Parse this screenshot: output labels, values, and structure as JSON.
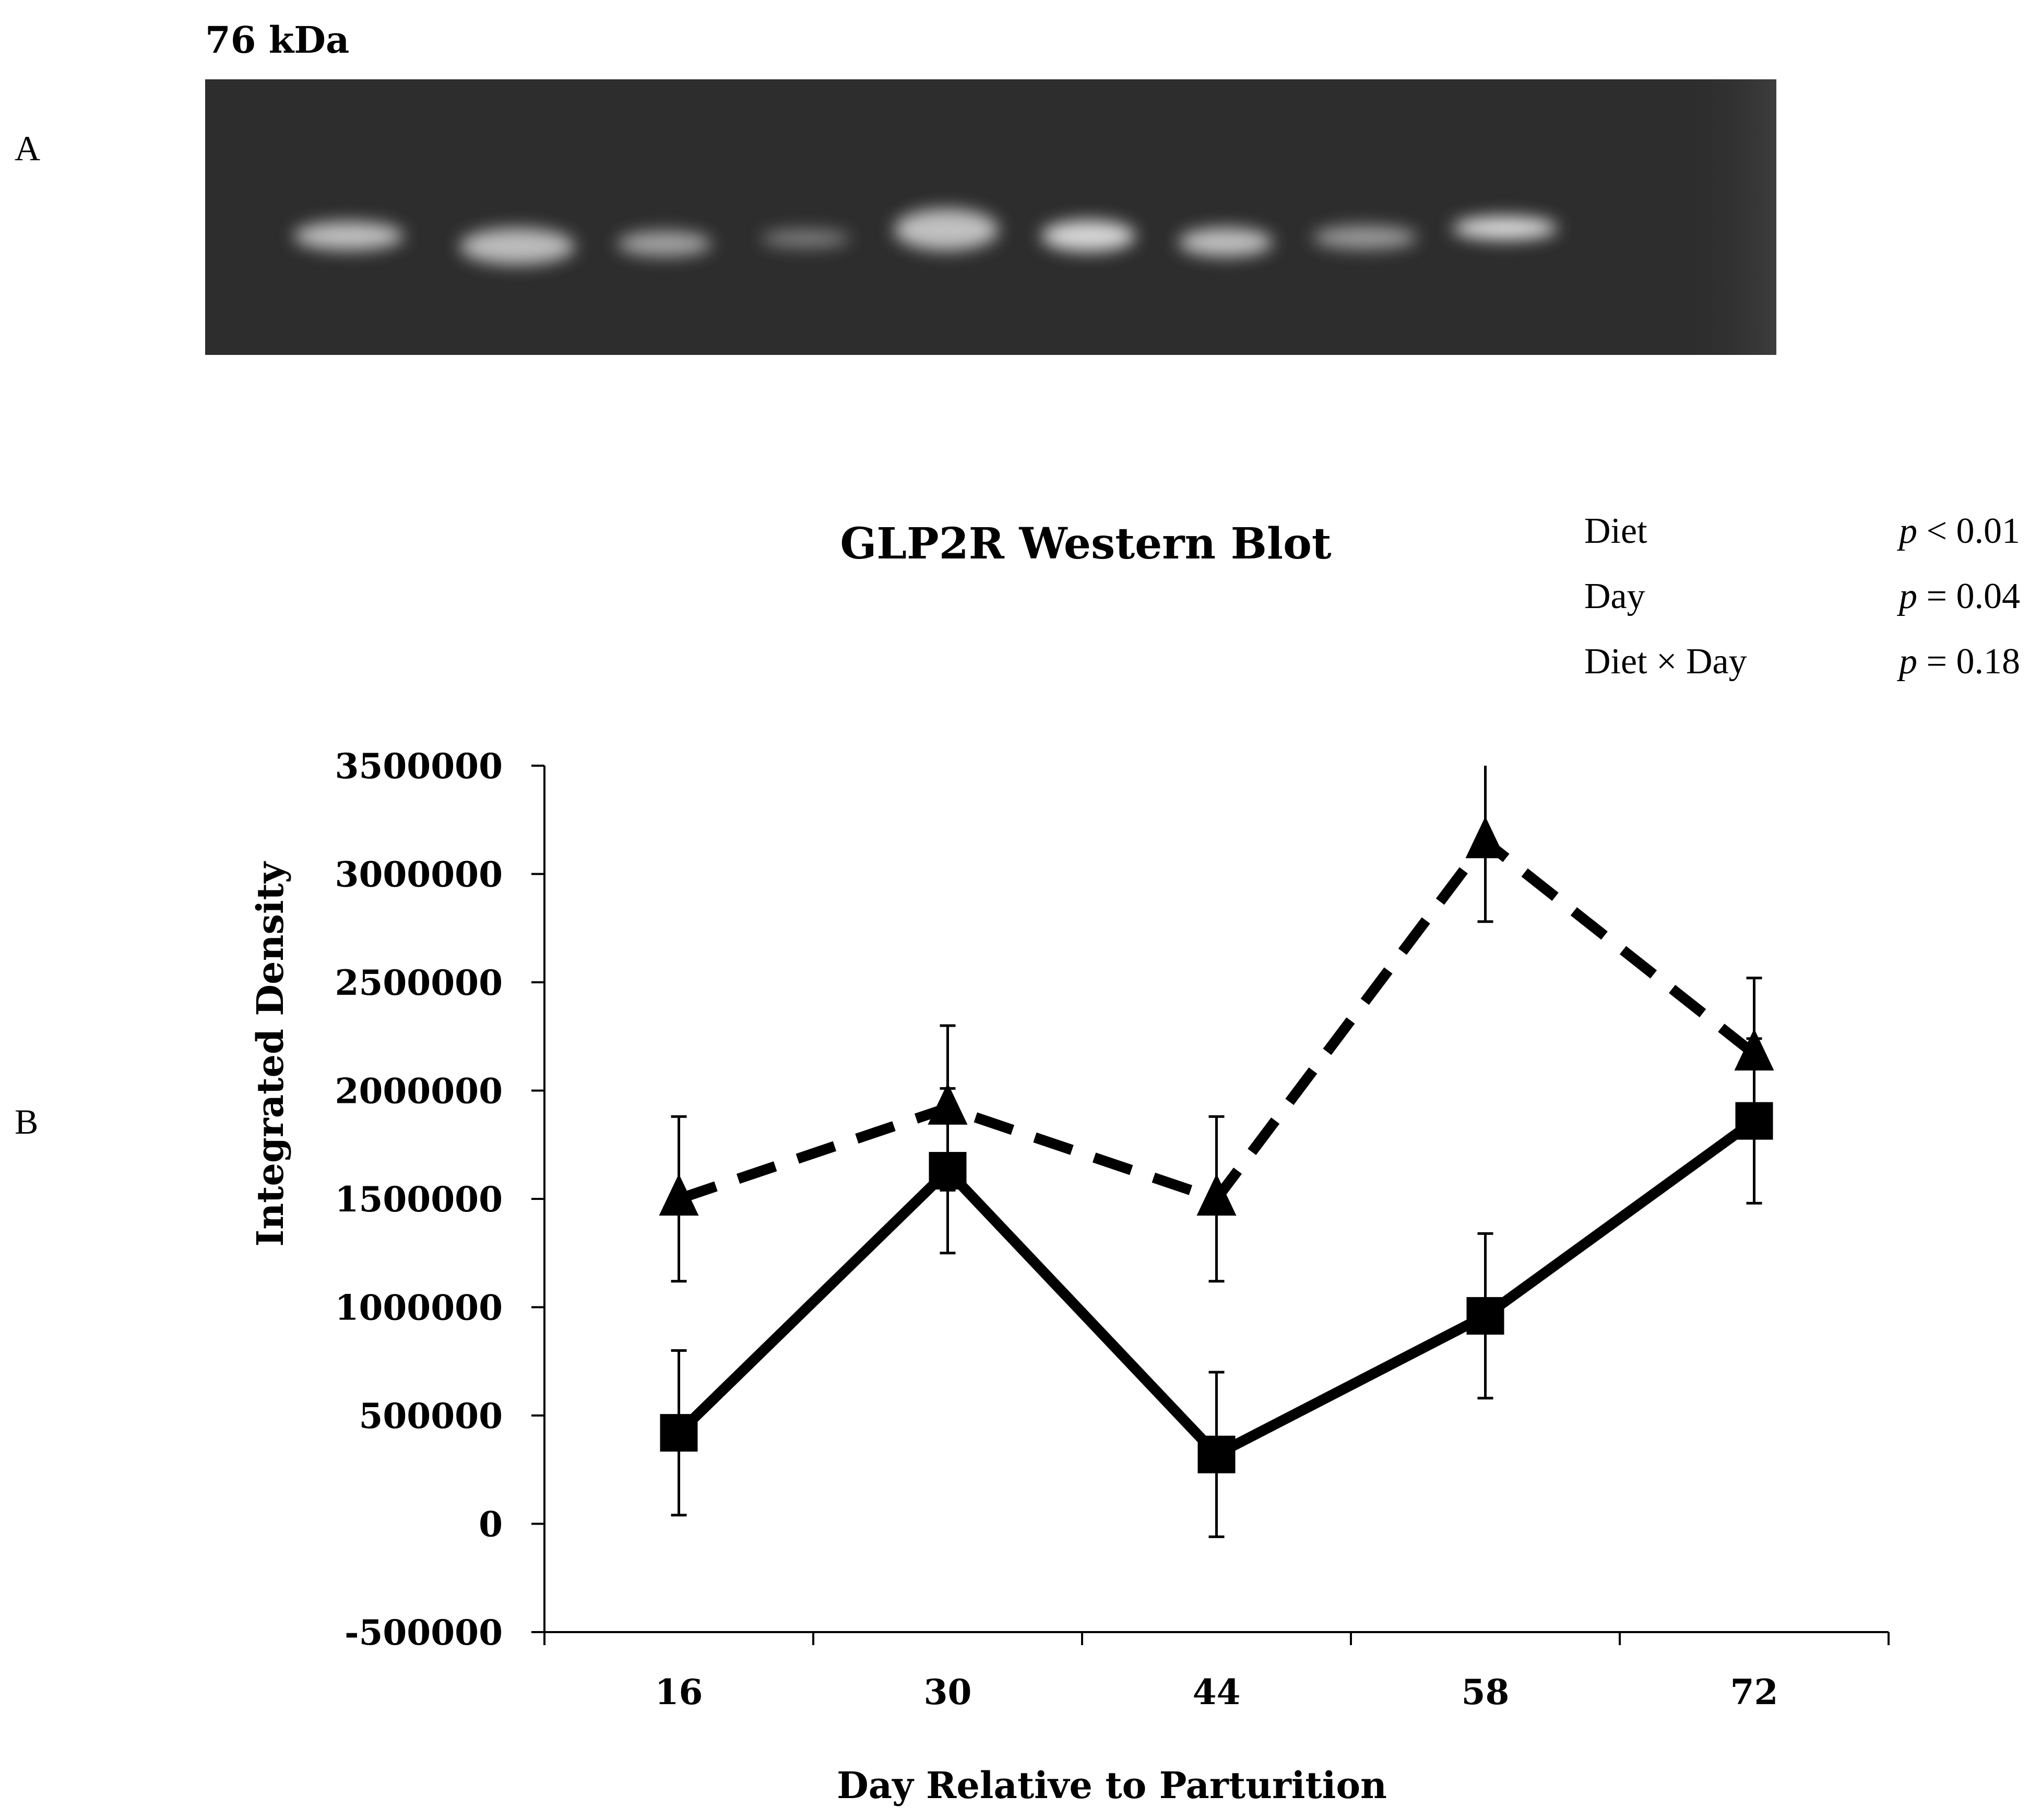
{
  "panels": {
    "a": "A",
    "b": "B"
  },
  "blot": {
    "marker_label": "76 kDa",
    "lane_count": 9
  },
  "stats": [
    {
      "term": "Diet",
      "p_symbol": "p",
      "p_value": "< 0.01"
    },
    {
      "term": "Day",
      "p_symbol": "p",
      "p_value": "= 0.04"
    },
    {
      "term": "Diet × Day",
      "p_symbol": "p",
      "p_value": "= 0.18"
    }
  ],
  "chart_data": {
    "type": "line",
    "title": "GLP2R Western Blot",
    "xlabel": "Day Relative to Parturition",
    "ylabel": "Integrated Density",
    "categories": [
      "16",
      "30",
      "44",
      "58",
      "72"
    ],
    "ylim": [
      -500000,
      3500000
    ],
    "yticks": [
      -500000,
      0,
      500000,
      1000000,
      1500000,
      2000000,
      2500000,
      3000000,
      3500000
    ],
    "ytick_labels": [
      "-500000",
      "0",
      "500000",
      "1000000",
      "1500000",
      "2000000",
      "2500000",
      "3000000",
      "3500000"
    ],
    "grid": false,
    "series": [
      {
        "marker": "triangle",
        "line_style": "dashed",
        "color": "#000000",
        "values": [
          1500000,
          1920000,
          1500000,
          3150000,
          2170000
        ],
        "error": [
          380000,
          380000,
          380000,
          370000,
          350000
        ]
      },
      {
        "marker": "square",
        "line_style": "solid",
        "color": "#000000",
        "values": [
          420000,
          1630000,
          320000,
          960000,
          1860000
        ],
        "error": [
          380000,
          380000,
          380000,
          380000,
          380000
        ]
      }
    ]
  }
}
